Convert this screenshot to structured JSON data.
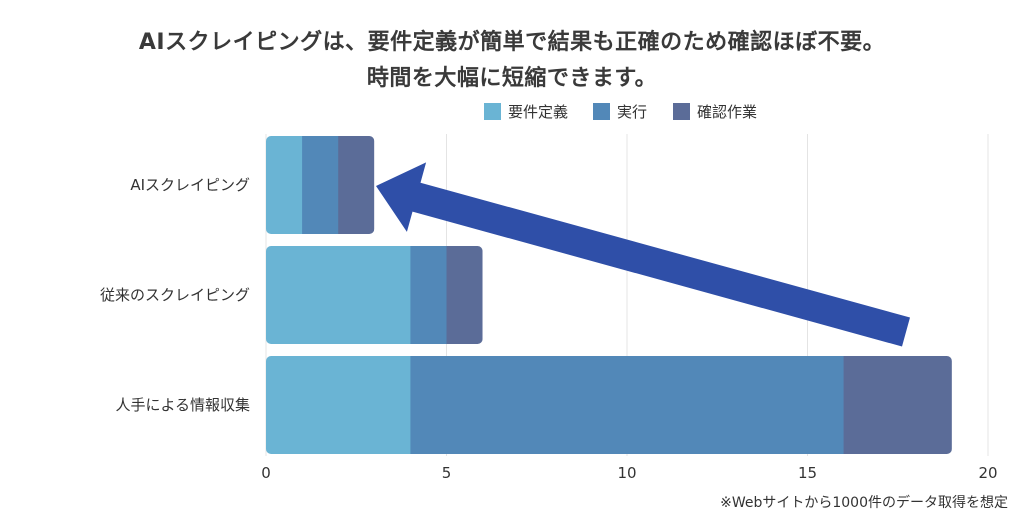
{
  "chart_data": {
    "type": "bar",
    "orientation": "horizontal",
    "stacked": true,
    "title_lines": [
      "AIスクレイピングは、要件定義が簡単で結果も正確のため確認ほぼ不要。",
      "時間を大幅に短縮できます。"
    ],
    "categories": [
      "AIスクレイピング",
      "従来のスクレイピング",
      "人手による情報収集"
    ],
    "series": [
      {
        "name": "要件定義",
        "values": [
          1,
          4,
          4
        ],
        "color": "#6ab4d4"
      },
      {
        "name": "実行",
        "values": [
          1,
          1,
          12
        ],
        "color": "#5288b8"
      },
      {
        "name": "確認作業",
        "values": [
          1,
          1,
          3
        ],
        "color": "#5b6c98"
      }
    ],
    "xlim": [
      0,
      20
    ],
    "xticks": [
      0,
      5,
      10,
      15,
      20
    ],
    "grid": true,
    "legend_position": "top-right",
    "annotation_arrow": {
      "from_category": "人手による情報収集",
      "to_category": "AIスクレイピング",
      "color": "#2f4fa8"
    },
    "footnote": "※Webサイトから1000件のデータ取得を想定"
  }
}
